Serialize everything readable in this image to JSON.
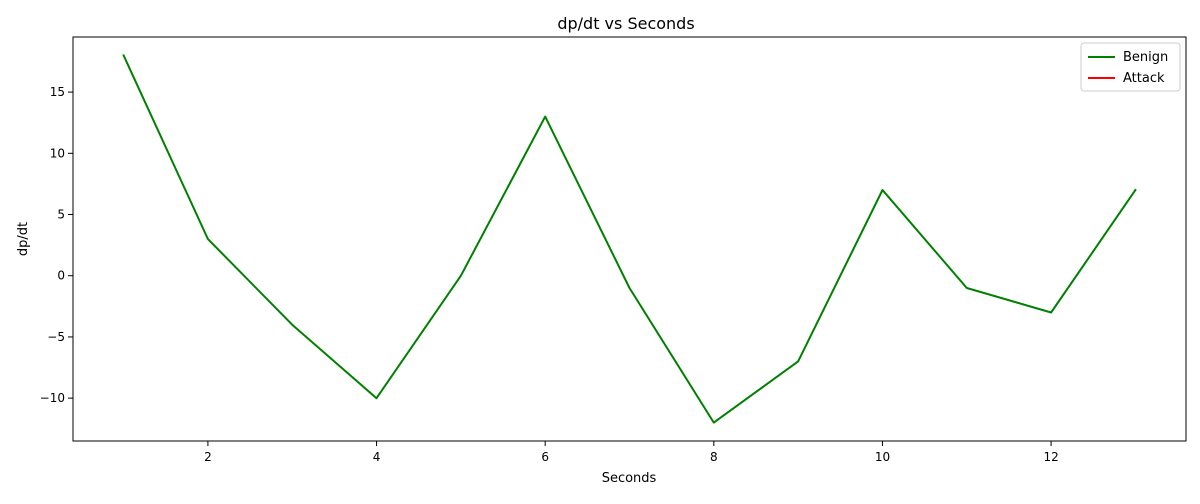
{
  "chart_data": {
    "type": "line",
    "title": "dp/dt vs Seconds",
    "xlabel": "Seconds",
    "ylabel": "dp/dt",
    "xlim": [
      0.4,
      13.6
    ],
    "ylim": [
      -13.5,
      19.5
    ],
    "xticks": [
      2,
      4,
      6,
      8,
      10,
      12
    ],
    "yticks": [
      -10,
      -5,
      0,
      5,
      10,
      15
    ],
    "ytick_labels": [
      "−10",
      "−5",
      "0",
      "5",
      "10",
      "15"
    ],
    "grid": false,
    "legend_position": "top-right",
    "series": [
      {
        "name": "Benign",
        "color": "#008000",
        "x": [
          1,
          2,
          3,
          4,
          5,
          6,
          7,
          8,
          9,
          10,
          11,
          12,
          13
        ],
        "y": [
          18,
          3,
          -4,
          -10,
          0,
          13,
          -1,
          -12,
          -7,
          7,
          -1,
          -3,
          7
        ]
      },
      {
        "name": "Attack",
        "color": "#ff0000",
        "x": [],
        "y": []
      }
    ]
  }
}
